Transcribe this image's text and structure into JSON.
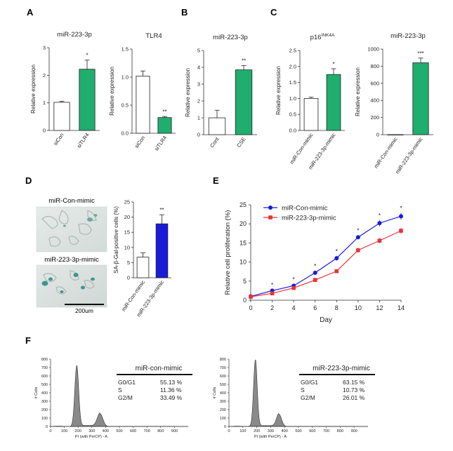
{
  "colors": {
    "green": "#1fae6e",
    "blue": "#1a1adb",
    "red": "#e8323c",
    "white": "#ffffff",
    "hist": "#8a8a8a",
    "axis": "#333333"
  },
  "panel_labels": [
    "A",
    "B",
    "C",
    "D",
    "E",
    "F"
  ],
  "chart_data": [
    {
      "id": "A1",
      "type": "bar",
      "title": "miR-223-3p",
      "ylabel": "Relative expression",
      "categories": [
        "siCon",
        "siTLR4"
      ],
      "values": [
        1.02,
        2.22
      ],
      "errors": [
        0.04,
        0.33
      ],
      "significance": [
        "",
        "*"
      ],
      "ylim": [
        0,
        3
      ],
      "yticks": [
        0,
        1,
        2,
        3
      ],
      "colors": [
        "#ffffff",
        "#1fae6e"
      ]
    },
    {
      "id": "A2",
      "type": "bar",
      "title": "TLR4",
      "ylabel": "Relative expression",
      "categories": [
        "siCon",
        "siTLR4"
      ],
      "values": [
        1.02,
        0.28
      ],
      "errors": [
        0.09,
        0.02
      ],
      "significance": [
        "",
        "**"
      ],
      "ylim": [
        0,
        1.5
      ],
      "yticks": [
        0.0,
        0.5,
        1.0,
        1.5
      ],
      "colors": [
        "#ffffff",
        "#1fae6e"
      ]
    },
    {
      "id": "B",
      "type": "bar",
      "title": "miR-223-3p",
      "ylabel": "Relative expression",
      "categories": [
        "Cont",
        "CSE"
      ],
      "values": [
        1.0,
        3.85
      ],
      "errors": [
        0.45,
        0.25
      ],
      "significance": [
        "",
        "**"
      ],
      "ylim": [
        0,
        5
      ],
      "yticks": [
        0,
        1,
        2,
        3,
        4,
        5
      ],
      "colors": [
        "#ffffff",
        "#1fae6e"
      ]
    },
    {
      "id": "C1",
      "type": "bar",
      "title_main": "p16",
      "title_sup": "INK4A",
      "ylabel": "Relative expression",
      "categories": [
        "miR-Con-mimic",
        "miR-223-3p-mimic"
      ],
      "values": [
        1.0,
        1.75
      ],
      "errors": [
        0.04,
        0.18
      ],
      "significance": [
        "",
        "*"
      ],
      "ylim": [
        0,
        2.5
      ],
      "yticks": [
        0.0,
        0.5,
        1.0,
        1.5,
        2.0,
        2.5
      ],
      "colors": [
        "#ffffff",
        "#1fae6e"
      ]
    },
    {
      "id": "C2",
      "type": "bar",
      "title": "miR-223-3p",
      "ylabel": "Relative expression",
      "categories": [
        "miR-Con-mimic",
        "miR-223-3p-mimic"
      ],
      "values": [
        1,
        840
      ],
      "errors": [
        0,
        55
      ],
      "significance": [
        "",
        "***"
      ],
      "ylim": [
        0,
        1000
      ],
      "yticks": [
        0,
        200,
        400,
        600,
        800,
        1000
      ],
      "colors": [
        "#ffffff",
        "#1fae6e"
      ]
    },
    {
      "id": "D",
      "type": "bar",
      "ylabel": "SA-β-Gal-positive cells (%)",
      "categories": [
        "miR-Con-mimic",
        "miR-223-3p-mimic"
      ],
      "values": [
        6.8,
        17.8
      ],
      "errors": [
        1.4,
        3.0
      ],
      "significance": [
        "",
        "**"
      ],
      "ylim": [
        0,
        25
      ],
      "yticks": [
        0,
        5,
        10,
        15,
        20,
        25
      ],
      "colors": [
        "#ffffff",
        "#1a1adb"
      ]
    },
    {
      "id": "E",
      "type": "line",
      "xlabel": "Day",
      "ylabel": "Relative cell proliferation (%)",
      "x": [
        0,
        2,
        4,
        6,
        8,
        10,
        12,
        14
      ],
      "xlim": [
        0,
        14
      ],
      "ylim": [
        0,
        25
      ],
      "xticks": [
        0,
        2,
        4,
        6,
        8,
        10,
        12,
        14
      ],
      "yticks": [
        0,
        5,
        10,
        15,
        20,
        25
      ],
      "significance": [
        "",
        "*",
        "*",
        "*",
        "*",
        "*",
        "*",
        "*"
      ],
      "series": [
        {
          "name": "miR-Con-mimic",
          "color": "#1a1adb",
          "marker": "circle",
          "values": [
            1.0,
            2.5,
            3.8,
            7.2,
            11.0,
            16.5,
            20.2,
            22.0
          ],
          "errors": [
            0.2,
            0.3,
            0.4,
            0.5,
            0.6,
            0.5,
            0.8,
            0.9
          ]
        },
        {
          "name": "miR-223-3p-mimic",
          "color": "#e8323c",
          "marker": "square",
          "values": [
            0.9,
            1.8,
            3.2,
            5.3,
            7.6,
            13.1,
            15.6,
            18.2
          ],
          "errors": [
            0.2,
            0.3,
            0.3,
            0.4,
            0.4,
            0.6,
            0.7,
            0.8
          ]
        }
      ],
      "legend": "top-left"
    },
    {
      "id": "F1",
      "type": "area",
      "xlabel": "PI (with PerCP) - A",
      "ylabel": "# Cells",
      "xlim": [
        0,
        1000
      ],
      "ylim": [
        0,
        800
      ],
      "xticks": [
        0,
        100,
        200,
        300,
        400,
        500,
        600,
        700,
        800,
        900
      ],
      "yticks": [
        0,
        100,
        200,
        300,
        400,
        500,
        600,
        700,
        800
      ],
      "peaks": [
        {
          "x": 190,
          "height": 720,
          "width": 14
        },
        {
          "x": 360,
          "height": 150,
          "width": 20
        }
      ],
      "s_phase_level": 12,
      "legend_title": "miR-con-mimic",
      "phases": [
        {
          "phase": "G0/G1",
          "value": "55.13 %"
        },
        {
          "phase": "S",
          "value": "11.36 %"
        },
        {
          "phase": "G2/M",
          "value": "33.49 %"
        }
      ]
    },
    {
      "id": "F2",
      "type": "area",
      "xlabel": "PI (with PerCP) - A",
      "ylabel": "# Cells",
      "xlim": [
        0,
        1000
      ],
      "ylim": [
        0,
        800
      ],
      "xticks": [
        0,
        100,
        200,
        300,
        400,
        500,
        600,
        700,
        800,
        900
      ],
      "yticks": [
        0,
        100,
        200,
        300,
        400,
        500,
        600,
        700,
        800
      ],
      "peaks": [
        {
          "x": 190,
          "height": 790,
          "width": 13
        },
        {
          "x": 360,
          "height": 145,
          "width": 18
        }
      ],
      "s_phase_level": 10,
      "legend_title": "miR-223-3p-mimic",
      "phases": [
        {
          "phase": "G0/G1",
          "value": "63.15 %"
        },
        {
          "phase": "S",
          "value": "10.73 %"
        },
        {
          "phase": "G2/M",
          "value": "26.01 %"
        }
      ]
    }
  ],
  "micrographs": {
    "top_label": "miR-Con-mimic",
    "bottom_label": "miR-223-3p-mimic",
    "scale_bar": "200um"
  }
}
